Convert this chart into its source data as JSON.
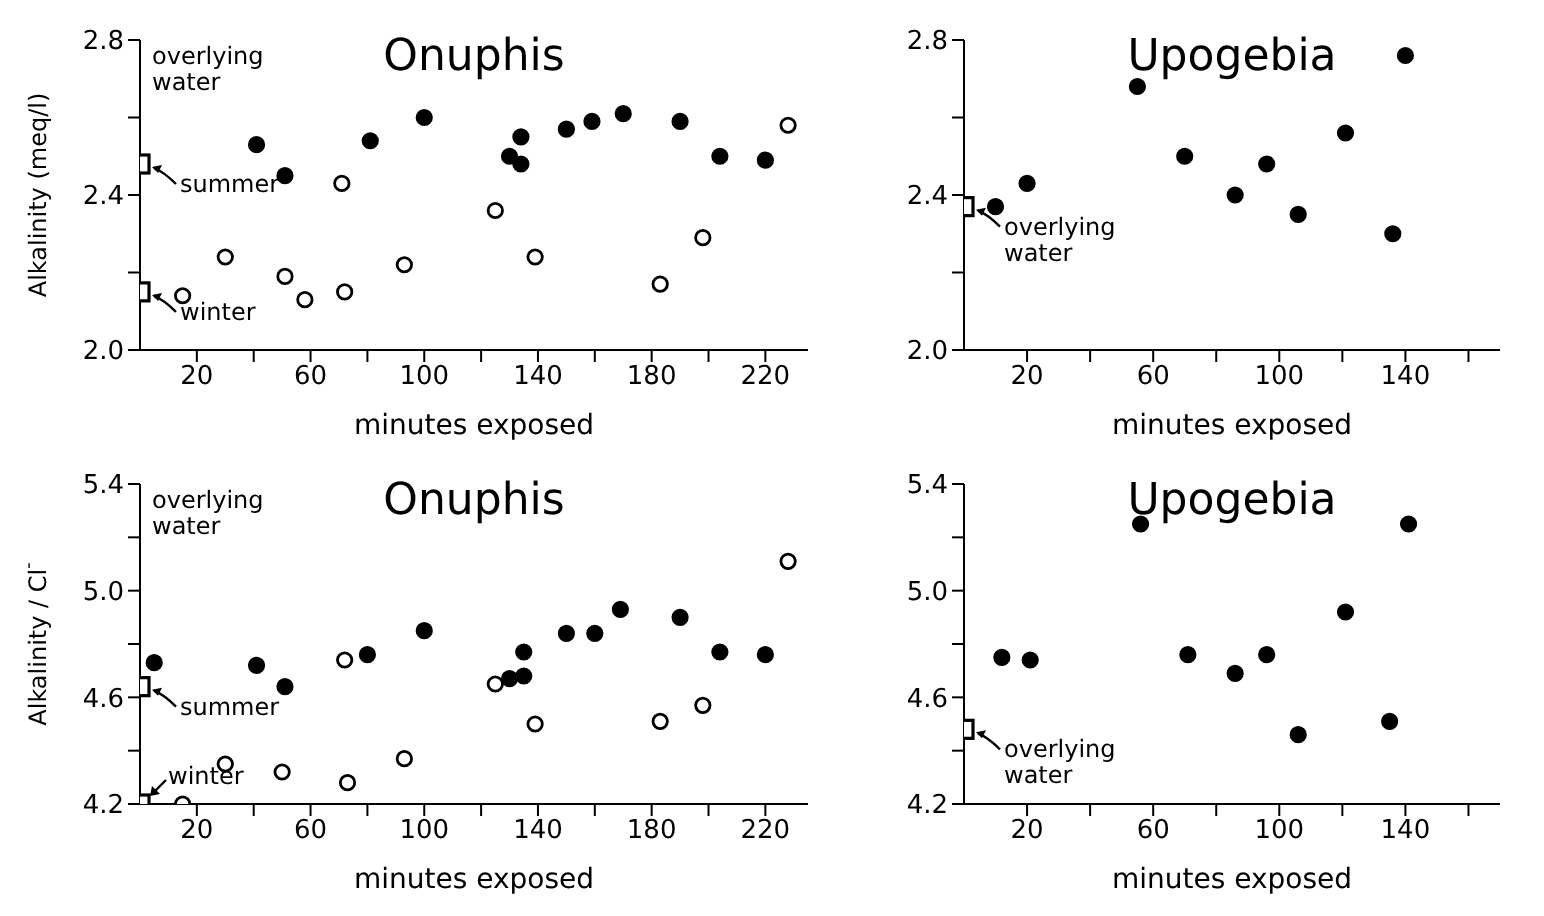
{
  "chart_data": [
    {
      "type": "scatter",
      "title": "Onuphis",
      "xlabel": "minutes exposed",
      "ylabel": "Alkalinity (meq/l)",
      "xlim": [
        0,
        235
      ],
      "xticks": [
        {
          "value": 20,
          "label": "20"
        },
        {
          "value": 40,
          "label": null
        },
        {
          "value": 60,
          "label": "60"
        },
        {
          "value": 80,
          "label": null
        },
        {
          "value": 100,
          "label": "100"
        },
        {
          "value": 120,
          "label": null
        },
        {
          "value": 140,
          "label": "140"
        },
        {
          "value": 160,
          "label": null
        },
        {
          "value": 180,
          "label": "180"
        },
        {
          "value": 200,
          "label": null
        },
        {
          "value": 220,
          "label": "220"
        }
      ],
      "ylim": [
        2.0,
        2.8
      ],
      "yticks": [
        {
          "value": 2.0,
          "label": "2.0"
        },
        {
          "value": 2.2,
          "label": null
        },
        2.4,
        {
          "value": 2.6,
          "label": null
        },
        2.8
      ],
      "grid": false,
      "legend": false,
      "annotations": [
        "overlying water",
        "summer",
        "winter"
      ],
      "series": [
        {
          "color": "#000000",
          "marker": "circle",
          "x": [
            41,
            51,
            81,
            100,
            130,
            134,
            134,
            150,
            159,
            170,
            190,
            204,
            220
          ],
          "values": [
            2.53,
            2.45,
            2.54,
            2.6,
            2.5,
            2.55,
            2.48,
            2.57,
            2.59,
            2.61,
            2.59,
            2.5,
            2.49
          ]
        },
        {
          "color": "#ffffff",
          "marker": "circle",
          "x": [
            15,
            30,
            51,
            58,
            71,
            72,
            93,
            125,
            139,
            183,
            198,
            228
          ],
          "values": [
            2.14,
            2.24,
            2.19,
            2.13,
            2.43,
            2.15,
            2.22,
            2.36,
            2.24,
            2.17,
            2.29,
            2.58
          ]
        },
        {
          "color": "#ffffff",
          "marker": "square",
          "x": [
            0,
            0
          ],
          "values": [
            2.48,
            2.15
          ]
        }
      ]
    },
    {
      "type": "scatter",
      "title": "Upogebia",
      "xlabel": "minutes exposed",
      "xlim": [
        0,
        170
      ],
      "xticks": [
        {
          "value": 20,
          "label": "20"
        },
        {
          "value": 40,
          "label": null
        },
        {
          "value": 60,
          "label": "60"
        },
        {
          "value": 80,
          "label": null
        },
        {
          "value": 100,
          "label": "100"
        },
        {
          "value": 120,
          "label": null
        },
        {
          "value": 140,
          "label": "140"
        },
        {
          "value": 160,
          "label": null
        }
      ],
      "ylim": [
        2.0,
        2.8
      ],
      "yticks": [
        {
          "value": 2.0,
          "label": "2.0"
        },
        {
          "value": 2.2,
          "label": null
        },
        2.4,
        {
          "value": 2.6,
          "label": null
        },
        2.8
      ],
      "grid": false,
      "legend": false,
      "annotations": [
        "overlying water"
      ],
      "series": [
        {
          "color": "#000000",
          "marker": "circle",
          "x": [
            10,
            20,
            55,
            70,
            86,
            96,
            106,
            121,
            136,
            140
          ],
          "values": [
            2.37,
            2.43,
            2.68,
            2.5,
            2.4,
            2.48,
            2.35,
            2.56,
            2.3,
            2.76
          ]
        },
        {
          "color": "#ffffff",
          "marker": "square",
          "x": [
            0
          ],
          "values": [
            2.37
          ]
        }
      ]
    },
    {
      "type": "scatter",
      "title": "Onuphis",
      "xlabel": "minutes exposed",
      "ylabel": "Alkalinity / Cl$^{-}$",
      "xlim": [
        0,
        235
      ],
      "xticks": [
        {
          "value": 20,
          "label": "20"
        },
        {
          "value": 40,
          "label": null
        },
        {
          "value": 60,
          "label": "60"
        },
        {
          "value": 80,
          "label": null
        },
        {
          "value": 100,
          "label": "100"
        },
        {
          "value": 120,
          "label": null
        },
        {
          "value": 140,
          "label": "140"
        },
        {
          "value": 160,
          "label": null
        },
        {
          "value": 180,
          "label": "180"
        },
        {
          "value": 200,
          "label": null
        },
        {
          "value": 220,
          "label": "220"
        }
      ],
      "ylim": [
        4.2,
        5.4
      ],
      "yticks": [
        4.2,
        {
          "value": 4.4,
          "label": null
        },
        4.6,
        {
          "value": 4.8,
          "label": null
        },
        {
          "value": 5.0,
          "label": "5.0"
        },
        {
          "value": 5.2,
          "label": null
        },
        5.4
      ],
      "grid": false,
      "legend": false,
      "annotations": [
        "overlying water",
        "summer",
        "winter"
      ],
      "series": [
        {
          "color": "#000000",
          "marker": "circle",
          "x": [
            5,
            41,
            51,
            80,
            100,
            130,
            135,
            135,
            150,
            160,
            169,
            190,
            204,
            220
          ],
          "values": [
            4.73,
            4.72,
            4.64,
            4.76,
            4.85,
            4.67,
            4.68,
            4.77,
            4.84,
            4.84,
            4.93,
            4.9,
            4.77,
            4.76
          ]
        },
        {
          "color": "#ffffff",
          "marker": "circle",
          "x": [
            15,
            30,
            50,
            72,
            73,
            93,
            125,
            139,
            183,
            198,
            228
          ],
          "values": [
            4.2,
            4.35,
            4.32,
            4.74,
            4.28,
            4.37,
            4.65,
            4.5,
            4.51,
            4.57,
            5.11
          ]
        },
        {
          "color": "#ffffff",
          "marker": "square",
          "x": [
            0,
            0
          ],
          "values": [
            4.64,
            4.2
          ]
        }
      ]
    },
    {
      "type": "scatter",
      "title": "Upogebia",
      "xlabel": "minutes exposed",
      "xlim": [
        0,
        170
      ],
      "xticks": [
        {
          "value": 20,
          "label": "20"
        },
        {
          "value": 40,
          "label": null
        },
        {
          "value": 60,
          "label": "60"
        },
        {
          "value": 80,
          "label": null
        },
        {
          "value": 100,
          "label": "100"
        },
        {
          "value": 120,
          "label": null
        },
        {
          "value": 140,
          "label": "140"
        },
        {
          "value": 160,
          "label": null
        }
      ],
      "ylim": [
        4.2,
        5.4
      ],
      "yticks": [
        4.2,
        {
          "value": 4.4,
          "label": null
        },
        4.6,
        {
          "value": 4.8,
          "label": null
        },
        {
          "value": 5.0,
          "label": "5.0"
        },
        {
          "value": 5.2,
          "label": null
        },
        5.4
      ],
      "grid": false,
      "legend": false,
      "annotations": [
        "overlying water"
      ],
      "series": [
        {
          "color": "#000000",
          "marker": "circle",
          "x": [
            12,
            21,
            56,
            71,
            86,
            96,
            106,
            121,
            135,
            141
          ],
          "values": [
            4.75,
            4.74,
            5.25,
            4.76,
            4.69,
            4.76,
            4.46,
            4.92,
            4.51,
            5.25
          ]
        },
        {
          "color": "#ffffff",
          "marker": "square",
          "x": [
            0
          ],
          "values": [
            4.48
          ]
        }
      ]
    }
  ]
}
